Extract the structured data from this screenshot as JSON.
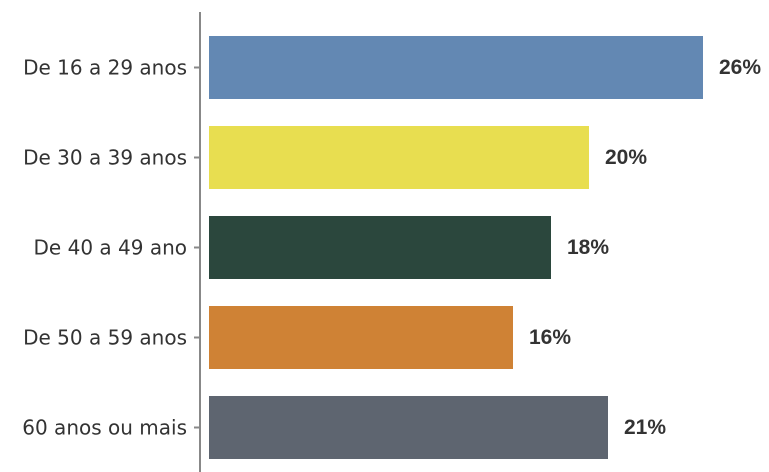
{
  "chart_data": {
    "type": "bar",
    "orientation": "horizontal",
    "categories": [
      "De 16 a 29 anos",
      "De 30 a 39 anos",
      "De 40 a 49 ano",
      "De 50 a 59 anos",
      "60 anos ou mais"
    ],
    "values": [
      26,
      20,
      18,
      16,
      21
    ],
    "value_labels": [
      "26%",
      "20%",
      "18%",
      "16%",
      "21%"
    ],
    "colors": [
      "#6388b3",
      "#e8de50",
      "#2b473d",
      "#cf8235",
      "#5e6570"
    ],
    "unit": "%",
    "xlim": [
      0,
      26
    ],
    "grid": false,
    "legend": "none",
    "title": "",
    "xlabel": "",
    "ylabel": ""
  }
}
